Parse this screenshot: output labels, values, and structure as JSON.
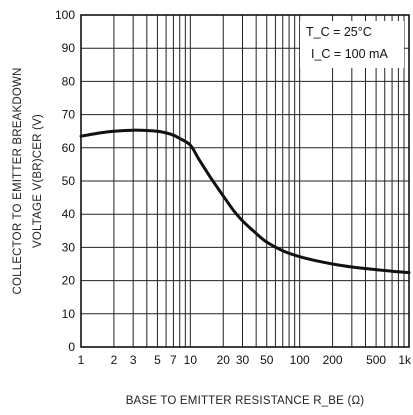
{
  "chart_data": {
    "type": "line",
    "title": "",
    "xlabel": "BASE TO EMITTER RESISTANCE R_BE (Ω)",
    "ylabel_line1": "COLLECTOR TO EMITTER BREAKDOWN",
    "ylabel_line2": "VOLTAGE   V(BR)CER (V)",
    "x_scale": "log",
    "xlim": [
      1,
      1000
    ],
    "ylim": [
      0,
      100
    ],
    "grid": true,
    "annotations": [
      "T_C = 25°C",
      "I_C = 100 mA"
    ],
    "annotation_placement": "top-right",
    "x_ticks": [
      {
        "value": 1,
        "label": "1"
      },
      {
        "value": 2,
        "label": "2"
      },
      {
        "value": 3,
        "label": "3"
      },
      {
        "value": 5,
        "label": "5"
      },
      {
        "value": 7,
        "label": "7"
      },
      {
        "value": 10,
        "label": "10"
      },
      {
        "value": 20,
        "label": "20"
      },
      {
        "value": 30,
        "label": "30"
      },
      {
        "value": 50,
        "label": "50"
      },
      {
        "value": 100,
        "label": "100"
      },
      {
        "value": 200,
        "label": "200"
      },
      {
        "value": 500,
        "label": "500"
      },
      {
        "value": 1000,
        "label": "1k"
      }
    ],
    "x_grid_values": [
      1,
      2,
      3,
      4,
      5,
      6,
      7,
      8,
      9,
      10,
      20,
      30,
      40,
      50,
      60,
      70,
      80,
      90,
      100,
      200,
      300,
      400,
      500,
      600,
      700,
      800,
      900,
      1000
    ],
    "y_ticks": [
      0,
      10,
      20,
      30,
      40,
      50,
      60,
      70,
      80,
      90,
      100
    ],
    "series": [
      {
        "x": [
          1,
          1.5,
          2,
          3,
          4,
          5,
          6,
          7,
          8,
          10,
          12,
          15,
          20,
          25,
          30,
          40,
          50,
          70,
          100,
          150,
          200,
          300,
          500,
          700,
          1000
        ],
        "y": [
          63.5,
          64.5,
          65,
          65.3,
          65.2,
          65,
          64.5,
          63.8,
          62.8,
          60.8,
          56.5,
          51.5,
          45.5,
          41,
          38,
          34.2,
          31.6,
          29,
          27.2,
          25.8,
          25,
          24.1,
          23.3,
          22.8,
          22.4
        ]
      }
    ]
  }
}
